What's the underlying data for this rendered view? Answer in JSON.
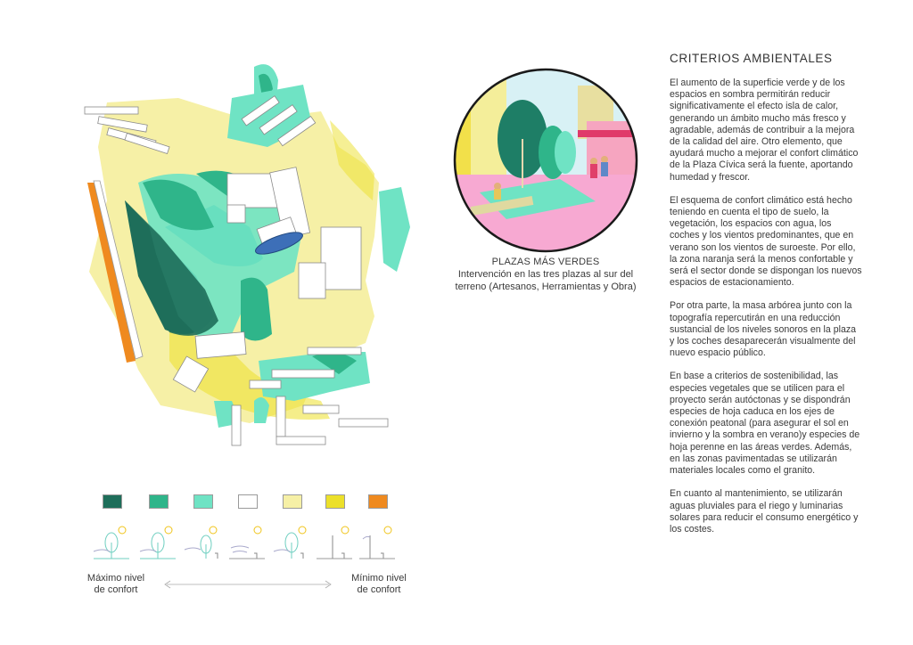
{
  "text_panel": {
    "title": "CRITERIOS AMBIENTALES",
    "paragraphs": [
      "El aumento de la superficie verde y de los espacios en sombra permitirán reducir significativamente el efecto isla de calor, generando un ámbito mucho más fresco y agradable, además de contribuir a la mejora de la calidad del aire. Otro elemento, que ayudará mucho a mejorar el confort climático de la Plaza Cívica será la fuente, aportando humedad y frescor.",
      "El esquema de confort climático está hecho teniendo en cuenta el tipo de suelo, la vegetación, los espacios con agua, los coches y los vientos predominantes, que en verano son los vientos de suroeste. Por ello, la zona naranja será la menos confortable y será el sector donde se dispongan los nuevos espacios de estacionamiento.",
      "Por otra parte, la masa arbórea junto con la topografía repercutirán en una reducción sustancial de los niveles sonoros en la plaza y los coches desaparecerán visualmente del nuevo espacio público.",
      "En base a criterios de sostenibilidad, las especies vegetales que se utilicen para el proyecto serán autóctonas y se dispondrán especies de hoja caduca en los ejes de conexión peatonal (para asegurar el sol en invierno y la sombra en verano)y especies de hoja perenne en las áreas verdes. Además, en las zonas pavimentadas se utilizarán materiales locales como el granito.",
      "En cuanto al mantenimiento, se utilizarán aguas pluviales para el riego y luminarias solares para reducir el consumo energético y los costes."
    ]
  },
  "caption": {
    "title": "PLAZAS MÁS VERDES",
    "text": "Intervención en las tres plazas al sur del terreno (Artesanos, Herramientas y Obra)"
  },
  "legend": {
    "colors": [
      "#1e6e5a",
      "#2fb58a",
      "#6fe3c4",
      "#ffffff",
      "#f6f0a6",
      "#ece02a",
      "#ef8a1f"
    ],
    "icons": [
      "tree-sun-icon",
      "tree-sun-icon",
      "tree-wind-icon",
      "wind-sun-icon",
      "tree-car-icon",
      "pole-sun-icon",
      "pole-car-icon"
    ],
    "max_label": "Máximo nivel\nde confort",
    "min_label": "Mínimo nivel\nde confort"
  },
  "colors": {
    "dark_green": "#1e6e5a",
    "green": "#2fb58a",
    "mint": "#6fe3c4",
    "pale_yellow": "#f6f0a6",
    "yellow": "#ece02a",
    "orange": "#ef8a1f",
    "water": "#3d6fb8"
  }
}
